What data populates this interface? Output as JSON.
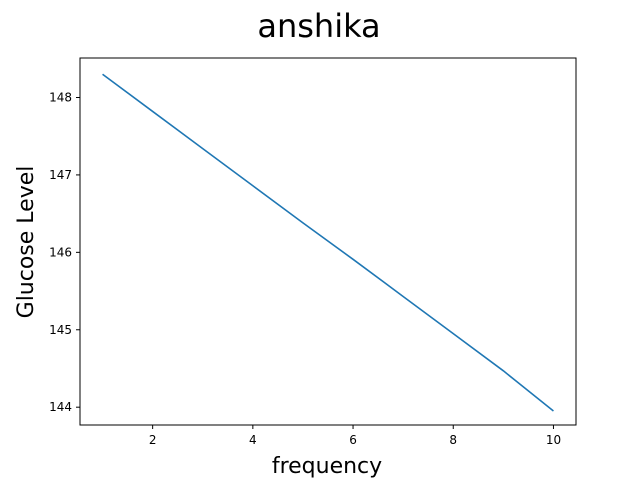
{
  "chart_data": {
    "type": "line",
    "title": "anshika",
    "xlabel": "frequency",
    "ylabel": "Glucose Level",
    "xlim": [
      0.55,
      10.45
    ],
    "ylim": [
      143.77,
      148.51
    ],
    "xticks": [
      2,
      4,
      6,
      8,
      10
    ],
    "yticks": [
      144,
      145,
      146,
      147,
      148
    ],
    "grid": false,
    "series": [
      {
        "color": "#1f77b4",
        "x": [
          1,
          2,
          3,
          4,
          5,
          6,
          7,
          8,
          9,
          10
        ],
        "y": [
          148.3,
          147.82,
          147.34,
          146.86,
          146.38,
          145.91,
          145.43,
          144.95,
          144.47,
          143.95
        ]
      }
    ]
  }
}
